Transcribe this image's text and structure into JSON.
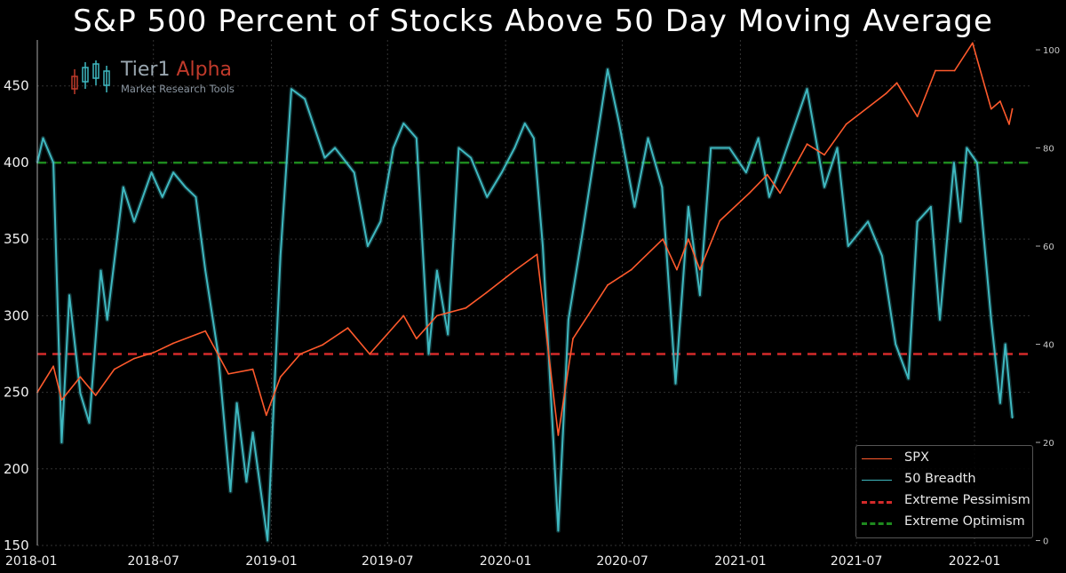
{
  "title": "S&P 500 Percent of Stocks Above 50 Day Moving Average",
  "logo": {
    "brand_main": "Tier1",
    "brand_accent": "Alpha",
    "subtitle": "Market Research Tools"
  },
  "colors": {
    "spx": "#ff5a2c",
    "breadth": "#3fb8c0",
    "pessimism": "#d42a2a",
    "optimism": "#1e8a1e",
    "background": "#000000"
  },
  "legend": [
    {
      "label": "SPX",
      "color": "#ff5a2c",
      "style": "solid"
    },
    {
      "label": "50 Breadth",
      "color": "#3fb8c0",
      "style": "solid"
    },
    {
      "label": "Extreme Pessimism",
      "color": "#d42a2a",
      "style": "dashed"
    },
    {
      "label": "Extreme Optimism",
      "color": "#1e8a1e",
      "style": "dashed"
    }
  ],
  "chart_data": {
    "type": "line",
    "title": "S&P 500 Percent of Stocks Above 50 Day Moving Average",
    "x_tick_labels": [
      "2018-01",
      "2018-07",
      "2019-01",
      "2019-07",
      "2020-01",
      "2020-07",
      "2021-01",
      "2021-07",
      "2022-01"
    ],
    "xlim": [
      "2018-01",
      "2022-04"
    ],
    "y_left": {
      "ticks": [
        150,
        200,
        250,
        300,
        350,
        400,
        450
      ],
      "lim": [
        150,
        480
      ]
    },
    "y_right": {
      "ticks": [
        0,
        20,
        40,
        60,
        80,
        100
      ],
      "lim": [
        -1,
        102
      ]
    },
    "grid": true,
    "legend_position": "bottom-right",
    "series": [
      {
        "name": "SPX",
        "axis": "left",
        "x": [
          "2018-01-01",
          "2018-01-26",
          "2018-02-08",
          "2018-03-09",
          "2018-04-02",
          "2018-05-01",
          "2018-06-01",
          "2018-07-02",
          "2018-08-01",
          "2018-09-20",
          "2018-10-26",
          "2018-12-03",
          "2018-12-24",
          "2019-01-15",
          "2019-02-15",
          "2019-03-22",
          "2019-04-30",
          "2019-06-03",
          "2019-07-26",
          "2019-08-15",
          "2019-09-16",
          "2019-10-31",
          "2019-12-02",
          "2020-01-17",
          "2020-02-19",
          "2020-03-23",
          "2020-04-15",
          "2020-06-08",
          "2020-07-15",
          "2020-09-02",
          "2020-09-24",
          "2020-10-12",
          "2020-10-30",
          "2020-11-30",
          "2021-01-15",
          "2021-02-12",
          "2021-03-04",
          "2021-04-15",
          "2021-05-12",
          "2021-06-15",
          "2021-08-16",
          "2021-09-02",
          "2021-10-04",
          "2021-11-01",
          "2021-12-01",
          "2021-12-29",
          "2022-01-27",
          "2022-02-10",
          "2022-02-24",
          "2022-03-01"
        ],
        "values": [
          250,
          267,
          245,
          260,
          248,
          265,
          272,
          276,
          282,
          290,
          262,
          265,
          235,
          260,
          275,
          281,
          292,
          275,
          300,
          285,
          300,
          305,
          315,
          330,
          340,
          222,
          285,
          320,
          330,
          350,
          330,
          350,
          330,
          362,
          380,
          392,
          380,
          412,
          405,
          425,
          445,
          452,
          430,
          460,
          460,
          478,
          435,
          440,
          425,
          435
        ]
      },
      {
        "name": "50 Breadth",
        "axis": "right",
        "x": [
          "2018-01-01",
          "2018-01-10",
          "2018-01-26",
          "2018-02-08",
          "2018-02-20",
          "2018-03-09",
          "2018-03-23",
          "2018-04-10",
          "2018-04-20",
          "2018-05-15",
          "2018-06-01",
          "2018-06-28",
          "2018-07-15",
          "2018-08-01",
          "2018-08-20",
          "2018-09-05",
          "2018-09-20",
          "2018-10-10",
          "2018-10-29",
          "2018-11-08",
          "2018-11-23",
          "2018-12-03",
          "2018-12-26",
          "2019-01-15",
          "2019-02-01",
          "2019-02-22",
          "2019-03-25",
          "2019-04-10",
          "2019-05-10",
          "2019-05-31",
          "2019-06-20",
          "2019-07-10",
          "2019-07-26",
          "2019-08-15",
          "2019-09-03",
          "2019-09-16",
          "2019-10-03",
          "2019-10-20",
          "2019-11-08",
          "2019-12-03",
          "2019-12-26",
          "2020-01-15",
          "2020-01-31",
          "2020-02-14",
          "2020-02-28",
          "2020-03-23",
          "2020-04-08",
          "2020-04-29",
          "2020-06-08",
          "2020-06-26",
          "2020-07-20",
          "2020-08-10",
          "2020-09-01",
          "2020-09-22",
          "2020-10-12",
          "2020-10-30",
          "2020-11-16",
          "2020-12-15",
          "2021-01-10",
          "2021-01-29",
          "2021-02-15",
          "2021-03-04",
          "2021-04-15",
          "2021-05-12",
          "2021-06-01",
          "2021-06-18",
          "2021-07-19",
          "2021-08-10",
          "2021-08-31",
          "2021-09-20",
          "2021-10-04",
          "2021-10-25",
          "2021-11-08",
          "2021-11-30",
          "2021-12-10",
          "2021-12-20",
          "2022-01-05",
          "2022-01-27",
          "2022-02-10",
          "2022-02-18",
          "2022-03-01"
        ],
        "values": [
          77,
          82,
          77,
          20,
          50,
          30,
          24,
          55,
          45,
          72,
          65,
          75,
          70,
          75,
          72,
          70,
          55,
          38,
          10,
          28,
          12,
          22,
          0,
          58,
          92,
          90,
          78,
          80,
          75,
          60,
          65,
          80,
          85,
          82,
          38,
          55,
          42,
          80,
          78,
          70,
          75,
          80,
          85,
          82,
          60,
          2,
          45,
          62,
          96,
          85,
          68,
          82,
          72,
          32,
          68,
          50,
          80,
          80,
          75,
          82,
          70,
          76,
          92,
          72,
          80,
          60,
          65,
          58,
          40,
          33,
          65,
          68,
          45,
          77,
          65,
          80,
          77,
          45,
          28,
          40,
          25
        ]
      }
    ],
    "reference_lines": [
      {
        "name": "Extreme Pessimism",
        "axis": "right",
        "y": 38
      },
      {
        "name": "Extreme Optimism",
        "axis": "right",
        "y": 77
      }
    ]
  }
}
